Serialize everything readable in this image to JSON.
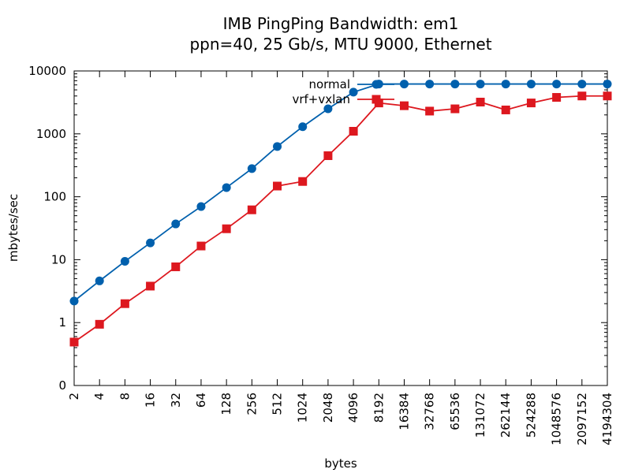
{
  "chart_data": {
    "type": "line",
    "title_line1": "IMB PingPing Bandwidth: em1",
    "title_line2": "ppn=40, 25 Gb/s, MTU 9000, Ethernet",
    "xlabel": "bytes",
    "ylabel": "mbytes/sec",
    "x_scale": "log2",
    "y_scale": "log10",
    "ylim": [
      0.1,
      10000
    ],
    "y_ticks": [
      {
        "value": 0.1,
        "label": "0"
      },
      {
        "value": 1,
        "label": "1"
      },
      {
        "value": 10,
        "label": "10"
      },
      {
        "value": 100,
        "label": "100"
      },
      {
        "value": 1000,
        "label": "1000"
      },
      {
        "value": 10000,
        "label": "10000"
      }
    ],
    "x": [
      2,
      4,
      8,
      16,
      32,
      64,
      128,
      256,
      512,
      1024,
      2048,
      4096,
      8192,
      16384,
      32768,
      65536,
      131072,
      262144,
      524288,
      1048576,
      2097152,
      4194304
    ],
    "series": [
      {
        "name": "normal",
        "color": "#0060ad",
        "marker": "circle",
        "values": [
          2.2,
          4.6,
          9.4,
          18.5,
          37,
          70,
          140,
          280,
          630,
          1300,
          2500,
          4600,
          6200,
          6200,
          6200,
          6200,
          6200,
          6200,
          6200,
          6200,
          6200,
          6200
        ]
      },
      {
        "name": "vrf+vxlan",
        "color": "#dd181f",
        "marker": "square",
        "values": [
          0.49,
          0.94,
          2.0,
          3.8,
          7.7,
          16.5,
          31,
          62,
          148,
          175,
          450,
          1100,
          3100,
          2800,
          2300,
          2500,
          3200,
          2400,
          3100,
          3800,
          4000,
          4000
        ]
      }
    ],
    "legend_position": "top-center",
    "grid": false
  }
}
